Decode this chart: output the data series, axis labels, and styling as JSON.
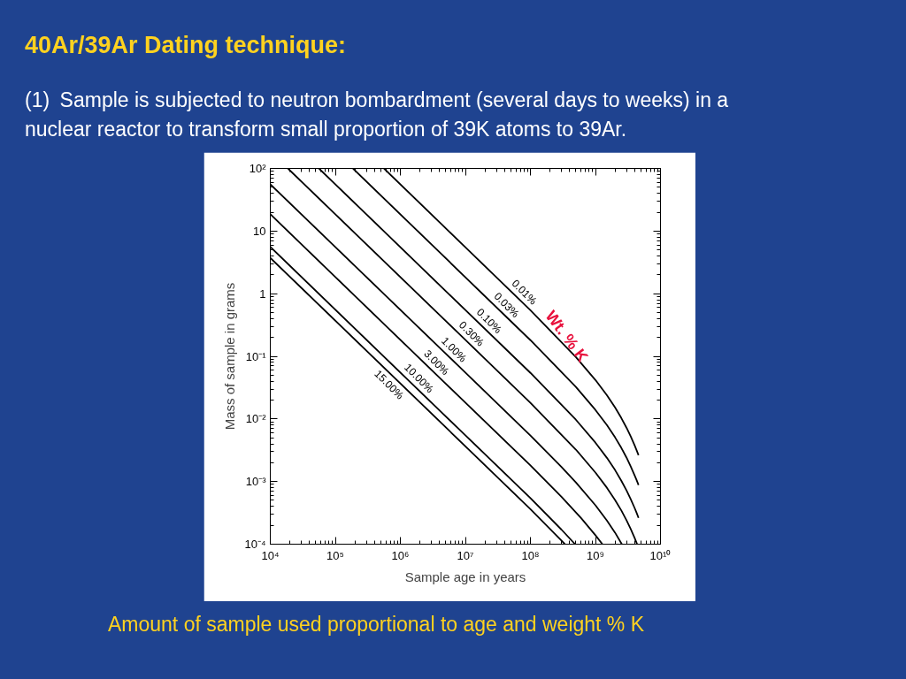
{
  "chart_data": {
    "type": "line",
    "title": "40Ar/39Ar Dating technique:",
    "subtitle": "(1) Sample is subjected to neutron bombardment (several days to weeks) in a nuclear reactor to transform small proportion of 39K atoms to 39Ar.",
    "xlabel": "Sample age in years",
    "ylabel": "Mass of sample in grams",
    "log": "xy",
    "grid": false,
    "marker": "none",
    "line_style": "solid",
    "xlim": [
      10000,
      10000000000
    ],
    "ylim": [
      0.0001,
      100
    ],
    "xticks": [
      {
        "value": 10000,
        "label": "10⁴"
      },
      {
        "value": 100000,
        "label": "10⁵"
      },
      {
        "value": 1000000,
        "label": "10⁶"
      },
      {
        "value": 10000000,
        "label": "10⁷"
      },
      {
        "value": 100000000,
        "label": "10⁸"
      },
      {
        "value": 1000000000,
        "label": "10⁹"
      },
      {
        "value": 10000000000,
        "label": "10¹⁰"
      }
    ],
    "yticks": [
      {
        "value": 0.0001,
        "label": "10⁻⁴"
      },
      {
        "value": 0.001,
        "label": "10⁻³"
      },
      {
        "value": 0.01,
        "label": "10⁻²"
      },
      {
        "value": 0.1,
        "label": "10⁻¹"
      },
      1,
      10,
      {
        "value": 100,
        "label": "10²"
      }
    ],
    "series": [
      {
        "name": "0.01%",
        "color": "#000000",
        "x": [
          559300,
          100000000,
          500000000,
          1000000000,
          1500000000,
          2000000000,
          2500000000,
          3000000000,
          3500000000,
          4000000000,
          4300000000,
          4600000000
        ],
        "values": [
          100,
          0.544,
          0.0971,
          0.0418,
          0.0239,
          0.0153,
          0.01034,
          0.00725,
          0.0052,
          0.00379,
          0.00315,
          0.00263
        ]
      },
      {
        "name": "0.03%",
        "color": "#000000",
        "x": [
          186430,
          100000000,
          500000000,
          1000000000,
          1500000000,
          2000000000,
          2500000000,
          3000000000,
          3500000000,
          4000000000,
          4300000000,
          4600000000
        ],
        "values": [
          100,
          0.181,
          0.0324,
          0.0139,
          0.00797,
          0.00509,
          0.00345,
          0.00242,
          0.00173,
          0.00126,
          0.00105,
          0.00088
        ]
      },
      {
        "name": "0.10%",
        "color": "#000000",
        "x": [
          55930,
          100000000,
          500000000,
          1000000000,
          1500000000,
          2000000000,
          2500000000,
          3000000000,
          3500000000,
          4000000000,
          4300000000,
          4600000000
        ],
        "values": [
          100,
          0.0544,
          0.00971,
          0.00418,
          0.00239,
          0.00153,
          0.00103,
          0.000725,
          0.00052,
          0.000379,
          0.000315,
          0.000263
        ]
      },
      {
        "name": "0.30%",
        "color": "#000000",
        "x": [
          18643,
          100000000,
          500000000,
          1000000000,
          1500000000,
          2000000000,
          2500000000,
          3000000000,
          3500000000,
          4000000000,
          4380000000
        ],
        "values": [
          100,
          0.0181,
          0.00324,
          0.00139,
          0.000797,
          0.000509,
          0.000345,
          0.000242,
          0.000173,
          0.000126,
          0.0001
        ]
      },
      {
        "name": "1.00%",
        "color": "#000000",
        "x": [
          10000,
          100000000,
          300000000,
          500000000,
          1000000000,
          1500000000,
          2000000000,
          2546000000
        ],
        "values": [
          55.9,
          0.00544,
          0.00171,
          0.000971,
          0.000418,
          0.000239,
          0.000153,
          0.0001
        ]
      },
      {
        "name": "3.00%",
        "color": "#000000",
        "x": [
          10000,
          100000000,
          300000000,
          600000000,
          1000000000,
          1280000000
        ],
        "values": [
          18.6,
          0.00181,
          0.000571,
          0.000262,
          0.000139,
          0.0001
        ]
      },
      {
        "name": "10.00%",
        "color": "#000000",
        "x": [
          10000,
          100000000,
          300000000,
          487000000
        ],
        "values": [
          5.59,
          0.000544,
          0.000171,
          0.0001
        ]
      },
      {
        "name": "15.00%",
        "color": "#000000",
        "x": [
          10000,
          100000000,
          300000000,
          339000000
        ],
        "values": [
          3.73,
          0.000363,
          0.000114,
          0.0001
        ]
      }
    ],
    "annotations": [
      "Wt. % K",
      "Amount of sample used proportional to age and weight % K"
    ]
  }
}
